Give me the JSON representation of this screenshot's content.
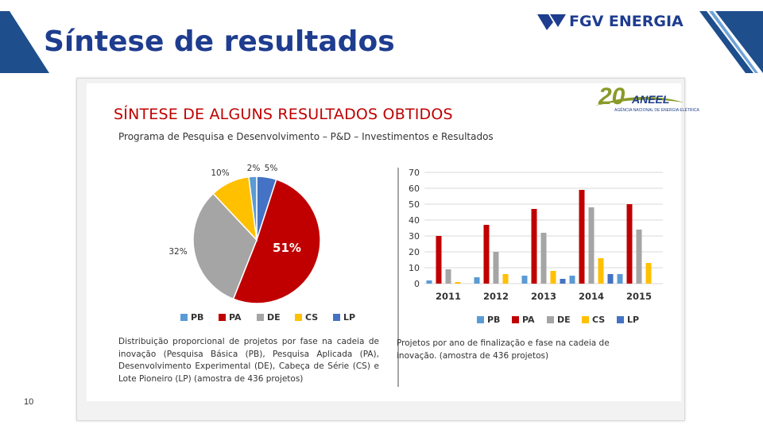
{
  "slide": {
    "title": "Síntese de resultados",
    "page_number": "10",
    "logo_text": "FGV ENERGIA",
    "accent_color": "#1e3d8f"
  },
  "panel": {
    "title": "SÍNTESE DE ALGUNS RESULTADOS OBTIDOS",
    "subtitle": "Programa de Pesquisa e Desenvolvimento – P&D – Investimentos e Resultados",
    "aneel_logo": {
      "number": "20",
      "name": "ANEEL",
      "subtitle": "AGÊNCIA NACIONAL DE ENERGIA ELÉTRICA"
    },
    "caption_left": "Distribuição proporcional de projetos por fase na cadeia de inovação (Pesquisa Básica (PB), Pesquisa Aplicada (PA), Desenvolvimento Experimental (DE), Cabeça de Série (CS) e Lote Pioneiro (LP) (amostra de 436 projetos)",
    "caption_right": "Projetos por ano de finalização e fase na cadeia de inovação. (amostra de 436 projetos)"
  },
  "chart_data": [
    {
      "type": "pie",
      "title": "",
      "categories": [
        "PB",
        "PA",
        "DE",
        "CS",
        "LP"
      ],
      "values": [
        2,
        51,
        32,
        10,
        5
      ],
      "labels": [
        "2%",
        "51%",
        "32%",
        "10%",
        "5%"
      ],
      "colors": [
        "#5b9bd5",
        "#c00000",
        "#a5a5a5",
        "#ffc000",
        "#4472c4"
      ],
      "legend": [
        "PB",
        "PA",
        "DE",
        "CS",
        "LP"
      ],
      "legend_position": "bottom"
    },
    {
      "type": "bar",
      "title": "",
      "categories": [
        "2011",
        "2012",
        "2013",
        "2014",
        "2015"
      ],
      "series": [
        {
          "name": "PB",
          "color": "#5b9bd5",
          "values": [
            2,
            4,
            5,
            5,
            6
          ]
        },
        {
          "name": "PA",
          "color": "#c00000",
          "values": [
            30,
            37,
            47,
            59,
            50
          ]
        },
        {
          "name": "DE",
          "color": "#a5a5a5",
          "values": [
            9,
            20,
            32,
            48,
            34
          ]
        },
        {
          "name": "CS",
          "color": "#ffc000",
          "values": [
            1,
            6,
            8,
            16,
            13
          ]
        },
        {
          "name": "LP",
          "color": "#4472c4",
          "values": [
            0,
            0,
            3,
            6,
            0
          ]
        }
      ],
      "ylim": [
        0,
        70
      ],
      "yticks": [
        "0",
        "10",
        "20",
        "30",
        "40",
        "50",
        "60",
        "70"
      ],
      "grid": true,
      "xlabel": "",
      "ylabel": "",
      "legend_position": "bottom"
    }
  ]
}
